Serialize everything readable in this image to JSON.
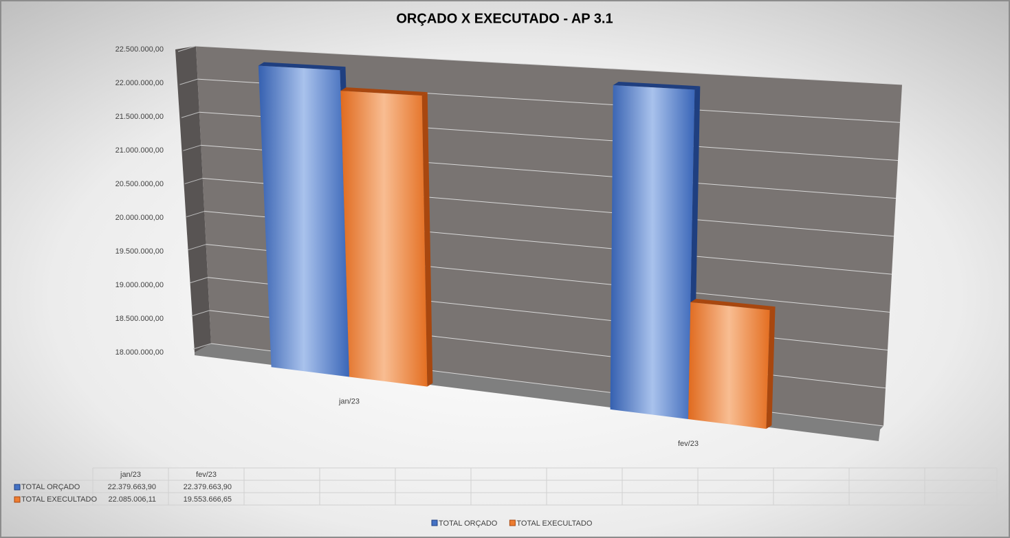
{
  "chart_data": {
    "type": "bar3d",
    "title": "ORÇADO X EXECUTADO - AP 3.1",
    "categories": [
      "jan/23",
      "fev/23"
    ],
    "series": [
      {
        "name": "TOTAL ORÇADO",
        "color": "#4472c4",
        "values": [
          22379663.9,
          22379663.9
        ],
        "value_labels": [
          "22.379.663,90",
          "22.379.663,90"
        ]
      },
      {
        "name": "TOTAL EXECULTADO",
        "color": "#ed7d31",
        "values": [
          22085006.11,
          19553666.65
        ],
        "value_labels": [
          "22.085.006,11",
          "19.553.666,65"
        ]
      }
    ],
    "ylim": [
      18000000,
      22500000
    ],
    "yticks": [
      {
        "value": 18000000,
        "label": "18.000.000,00"
      },
      {
        "value": 18500000,
        "label": "18.500.000,00"
      },
      {
        "value": 19000000,
        "label": "19.000.000,00"
      },
      {
        "value": 19500000,
        "label": "19.500.000,00"
      },
      {
        "value": 20000000,
        "label": "20.000.000,00"
      },
      {
        "value": 20500000,
        "label": "20.500.000,00"
      },
      {
        "value": 21000000,
        "label": "21.000.000,00"
      },
      {
        "value": 21500000,
        "label": "21.500.000,00"
      },
      {
        "value": 22000000,
        "label": "22.000.000,00"
      },
      {
        "value": 22500000,
        "label": "22.500.000,00"
      }
    ],
    "grid": true,
    "legend": "bottom"
  }
}
